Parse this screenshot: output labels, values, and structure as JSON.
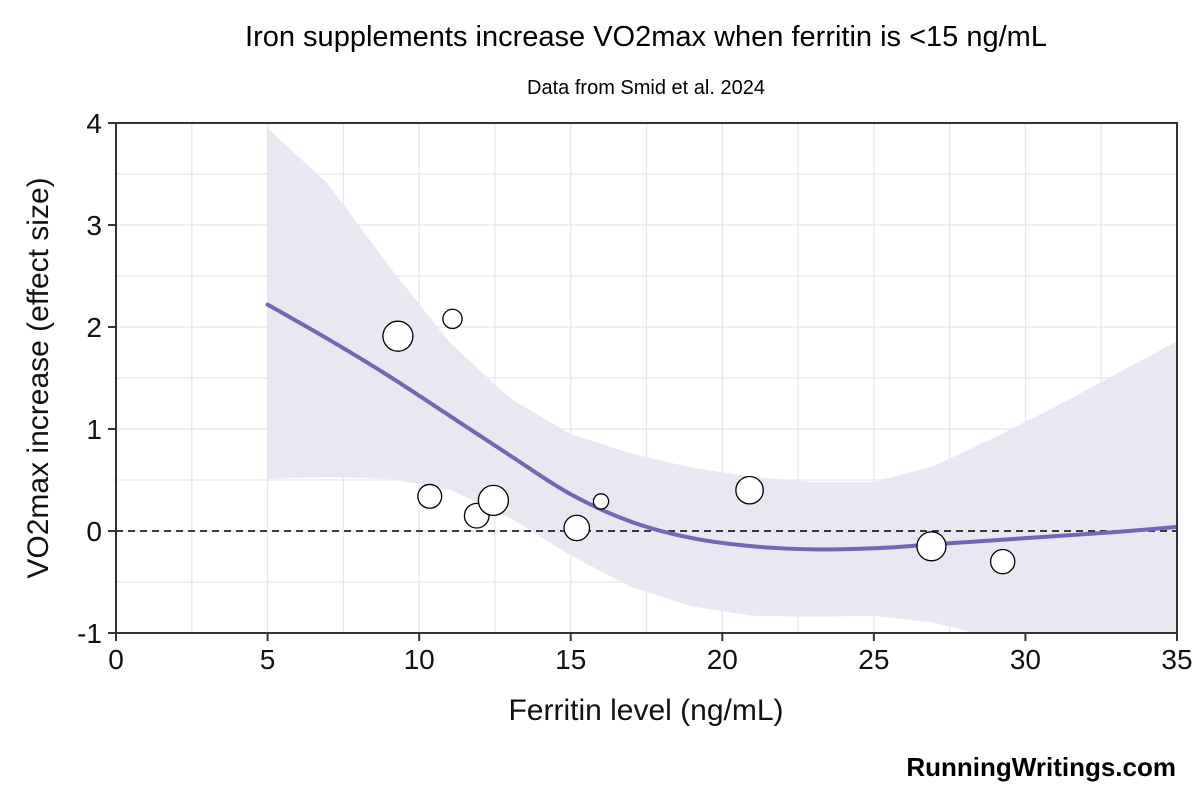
{
  "chart_data": {
    "type": "scatter",
    "title": "Iron supplements increase VO2max when ferritin is <15 ng/mL",
    "subtitle": "Data from Smid et al. 2024",
    "xlabel": "Ferritin level (ng/mL)",
    "ylabel": "VO2max increase (effect size)",
    "xlim": [
      0,
      35
    ],
    "ylim": [
      -1,
      4
    ],
    "x_ticks": [
      0,
      5,
      10,
      15,
      20,
      25,
      30,
      35
    ],
    "y_ticks": [
      -1,
      0,
      1,
      2,
      3,
      4
    ],
    "grid": true,
    "reference_line": {
      "y": 0,
      "style": "dashed"
    },
    "points": [
      {
        "x": 9.3,
        "y": 1.91,
        "weight": 1.0
      },
      {
        "x": 11.1,
        "y": 2.08,
        "weight": 0.3
      },
      {
        "x": 10.35,
        "y": 0.34,
        "weight": 0.55
      },
      {
        "x": 11.9,
        "y": 0.15,
        "weight": 0.6
      },
      {
        "x": 12.45,
        "y": 0.3,
        "weight": 1.0
      },
      {
        "x": 15.2,
        "y": 0.03,
        "weight": 0.65
      },
      {
        "x": 16.0,
        "y": 0.29,
        "weight": 0.15
      },
      {
        "x": 20.9,
        "y": 0.4,
        "weight": 0.8
      },
      {
        "x": 26.9,
        "y": -0.15,
        "weight": 0.92
      },
      {
        "x": 29.25,
        "y": -0.3,
        "weight": 0.58
      }
    ],
    "fit_line": {
      "x": [
        5,
        7,
        9,
        11,
        13,
        15,
        17,
        19,
        21,
        23,
        25,
        27,
        29,
        31,
        33,
        35
      ],
      "y": [
        2.22,
        1.88,
        1.52,
        1.13,
        0.74,
        0.36,
        0.09,
        -0.07,
        -0.15,
        -0.18,
        -0.17,
        -0.13,
        -0.09,
        -0.05,
        -0.01,
        0.04
      ]
    },
    "confidence_band": {
      "x": [
        5,
        7,
        9,
        11,
        13,
        15,
        17,
        19,
        21,
        23,
        25,
        27,
        29,
        31,
        33,
        35
      ],
      "upper": [
        3.95,
        3.4,
        2.6,
        1.85,
        1.3,
        0.95,
        0.76,
        0.62,
        0.53,
        0.48,
        0.48,
        0.64,
        0.92,
        1.22,
        1.54,
        1.86
      ],
      "lower": [
        0.51,
        0.53,
        0.51,
        0.41,
        0.13,
        -0.24,
        -0.55,
        -0.74,
        -0.83,
        -0.84,
        -0.83,
        -0.9,
        -1.05,
        -1.22,
        -1.4,
        -1.6
      ]
    },
    "colors": {
      "fit_line": "#7466b3",
      "band": "#e9e7f2",
      "grid": "#e6e6e6",
      "points_fill": "#ffffff",
      "points_stroke": "#000000",
      "axis": "#333333"
    }
  },
  "credit": "RunningWritings.com"
}
